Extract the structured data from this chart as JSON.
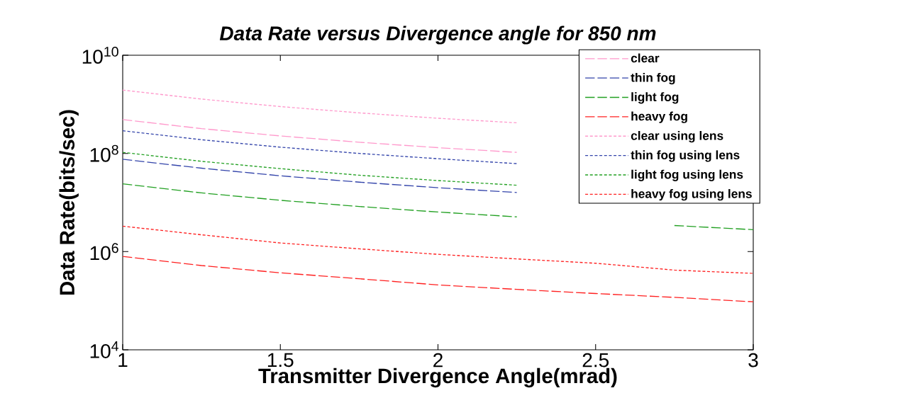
{
  "chart_data": {
    "type": "line",
    "title": "Data Rate versus Divergence angle for 850 nm",
    "xlabel": "Transmitter Divergence Angle(mrad)",
    "ylabel": "Data Rate(bits/sec)",
    "log": "y",
    "legend": "top right",
    "xlim": [
      1,
      3
    ],
    "ylim": [
      10000,
      10000000000
    ],
    "xticks": [
      1,
      1.5,
      2,
      2.5,
      3
    ],
    "yticks": [
      {
        "value": 10000,
        "label": "10$^{4}$"
      },
      {
        "value": 1000000,
        "label": "10$^{6}$"
      },
      {
        "value": 100000000,
        "label": "10$^{8}$"
      },
      {
        "value": 10000000000,
        "label": "10$^{10}$"
      }
    ],
    "x": [
      1,
      1.25,
      1.5,
      1.75,
      2,
      2.25,
      2.5,
      2.75,
      3
    ],
    "series": [
      {
        "name": "clear",
        "color": "#ff99cc",
        "line_style": "dashed",
        "values": [
          490000000,
          320000000,
          227000000,
          169000000,
          131000000,
          105000000,
          null,
          null,
          null
        ]
      },
      {
        "name": "thin fog",
        "color": "#3344aa",
        "line_style": "dashed",
        "values": [
          76000000,
          50000000,
          35000000,
          26000000,
          20000000,
          16000000,
          null,
          null,
          null
        ]
      },
      {
        "name": "light fog",
        "color": "#22a022",
        "line_style": "dashed",
        "values": [
          24000000,
          15700000,
          11100000,
          8300000,
          6400000,
          5100000,
          null,
          3400000,
          2800000
        ]
      },
      {
        "name": "heavy fog",
        "color": "#ff2020",
        "line_style": "dashed",
        "values": [
          800000,
          520000,
          370000,
          280000,
          210000,
          170000,
          140000,
          117000,
          95000
        ]
      },
      {
        "name": "clear using lens",
        "color": "#ff99cc",
        "line_style": "dotted",
        "values": [
          1950000000,
          1280000000,
          900000000,
          670000000,
          520000000,
          420000000,
          null,
          null,
          null
        ]
      },
      {
        "name": "thin fog using lens",
        "color": "#3344aa",
        "line_style": "dotted",
        "values": [
          290000000,
          190000000,
          134000000,
          100000000,
          78000000,
          62000000,
          null,
          null,
          null
        ]
      },
      {
        "name": "light fog using lens",
        "color": "#22a022",
        "line_style": "dotted",
        "values": [
          105000000,
          69000000,
          49000000,
          36000000,
          28000000,
          22500000,
          null,
          null,
          null
        ]
      },
      {
        "name": "heavy fog using lens",
        "color": "#ff2020",
        "line_style": "dotted",
        "values": [
          3300000,
          2200000,
          1500000,
          1140000,
          880000,
          710000,
          580000,
          420000,
          360000
        ]
      }
    ]
  }
}
